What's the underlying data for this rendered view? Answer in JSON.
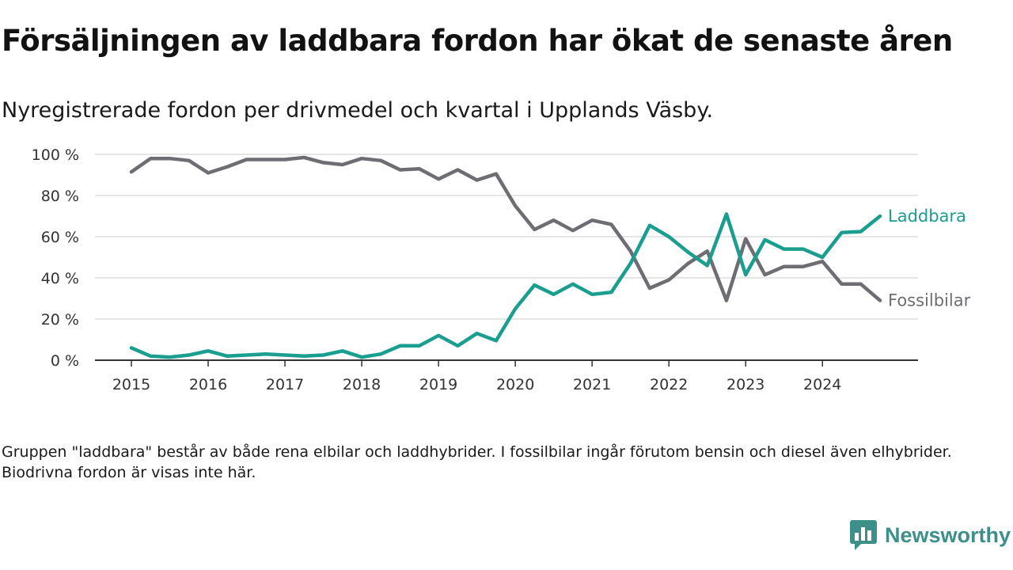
{
  "header": {
    "title": "Försäljningen av laddbara fordon har ökat de senaste åren",
    "subtitle": "Nyregistrerade fordon per drivmedel och kvartal i Upplands Väsby."
  },
  "footnote": "Gruppen \"laddbara\" består av både rena elbilar och laddhybrider. I fossilbilar ingår förutom bensin och diesel även elhybrider. Biodrivna fordon är visas inte här.",
  "brand": {
    "name": "Newsworthy",
    "icon": "newsworthy-logo-icon"
  },
  "colors": {
    "laddbara": "#1a9e8f",
    "fossil": "#6e6d73",
    "grid": "#dddddd",
    "axis": "#333333"
  },
  "chart_data": {
    "type": "line",
    "title": "Försäljningen av laddbara fordon har ökat de senaste åren",
    "subtitle": "Nyregistrerade fordon per drivmedel och kvartal i Upplands Väsby.",
    "xlabel": "",
    "ylabel": "",
    "x_range": [
      2015,
      2024.75
    ],
    "ylim": [
      0,
      100
    ],
    "x_ticks": [
      2015,
      2016,
      2017,
      2018,
      2019,
      2020,
      2021,
      2022,
      2023,
      2024
    ],
    "x_tick_labels": [
      "2015",
      "2016",
      "2017",
      "2018",
      "2019",
      "2020",
      "2021",
      "2022",
      "2023",
      "2024"
    ],
    "y_ticks": [
      0,
      20,
      40,
      60,
      80,
      100
    ],
    "y_tick_labels": [
      "0 %",
      "20 %",
      "40 %",
      "60 %",
      "80 %",
      "100 %"
    ],
    "grid": true,
    "legend": "inline-right",
    "x": [
      2015,
      2015.25,
      2015.5,
      2015.75,
      2016,
      2016.25,
      2016.5,
      2016.75,
      2017,
      2017.25,
      2017.5,
      2017.75,
      2018,
      2018.25,
      2018.5,
      2018.75,
      2019,
      2019.25,
      2019.5,
      2019.75,
      2020,
      2020.25,
      2020.5,
      2020.75,
      2021,
      2021.25,
      2021.5,
      2021.75,
      2022,
      2022.25,
      2022.5,
      2022.75,
      2023,
      2023.25,
      2023.5,
      2023.75,
      2024,
      2024.25,
      2024.5,
      2024.75
    ],
    "series": [
      {
        "name": "Laddbara",
        "label": "Laddbara",
        "color": "#1a9e8f",
        "values": [
          6,
          2,
          1.5,
          2.5,
          4.5,
          2,
          2.5,
          3,
          2.5,
          2,
          2.5,
          4.5,
          1.5,
          3,
          7,
          7,
          12,
          7,
          13,
          9.5,
          25,
          36.5,
          32,
          37,
          32,
          33,
          47,
          65.5,
          60,
          52.5,
          46,
          71,
          41.5,
          58.5,
          54,
          54,
          50,
          62,
          62.5,
          70
        ]
      },
      {
        "name": "Fossilbilar",
        "label": "Fossilbilar",
        "color": "#6e6d73",
        "values": [
          91.5,
          98,
          98,
          97,
          91,
          94,
          97.5,
          97.5,
          97.5,
          98.5,
          96,
          95,
          98,
          97,
          92.5,
          93,
          88,
          92.5,
          87.5,
          90.5,
          75,
          63.5,
          68,
          63,
          68,
          66,
          53,
          35,
          39,
          47,
          53,
          29,
          59,
          41.5,
          45.5,
          45.5,
          48,
          37,
          37,
          29
        ]
      }
    ]
  }
}
